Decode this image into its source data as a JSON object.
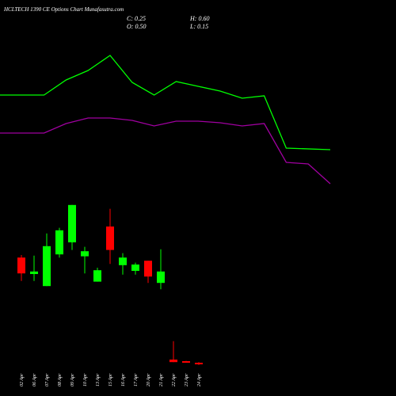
{
  "chart_data": [
    {
      "type": "candlestick",
      "title": "HCLTECH 1390 CE Options Chart Munafasutra.com",
      "ohlc_labels": [
        "C: 0.25",
        "H: 0.60",
        "O: 0.50",
        "L: 0.15"
      ],
      "categories": [
        "02 Apr",
        "06 Apr",
        "07 Apr",
        "08 Apr",
        "09 Apr",
        "10 Apr",
        "13 Apr",
        "15 Apr",
        "16 Apr",
        "17 Apr",
        "20 Apr",
        "21 Apr",
        "22 Apr",
        "23 Apr",
        "24 Apr"
      ],
      "open": [
        17.1,
        14.5,
        12.6,
        17.6,
        19.5,
        17.3,
        13.3,
        22,
        15.9,
        15,
        16.6,
        13.1,
        1.0,
        0.75,
        0.5
      ],
      "high": [
        17.5,
        17.4,
        20.9,
        21.8,
        25.4,
        18.8,
        15.5,
        24.8,
        17.8,
        16.3,
        16.6,
        18.4,
        3.9,
        0.8,
        0.6
      ],
      "low": [
        13.4,
        13.4,
        12.6,
        17.1,
        18.3,
        14.6,
        13.3,
        16.1,
        14.4,
        14.4,
        13.1,
        12.1,
        0.6,
        0.5,
        0.15
      ],
      "close": [
        14.6,
        14.9,
        18.9,
        21.4,
        25.4,
        18.1,
        15.1,
        18.3,
        17.1,
        16,
        14.1,
        14.9,
        0.6,
        0.5,
        0.25
      ],
      "up_color": "#00ff00",
      "down_color": "#ff0000",
      "ylim": [
        0,
        50
      ]
    },
    {
      "type": "line",
      "xlim": [
        0,
        15
      ],
      "ylim": [
        0,
        500
      ],
      "series": [
        {
          "color": "#00ff00",
          "x": [
            0,
            2,
            3,
            4,
            5,
            6,
            7,
            8,
            9,
            10,
            11,
            12,
            13,
            15
          ],
          "values": [
            380,
            380,
            399,
            411,
            430,
            396,
            380,
            397,
            391,
            385,
            376,
            379,
            313,
            311
          ]
        },
        {
          "color": "#a000a0",
          "x": [
            0,
            2,
            3,
            4,
            5,
            6,
            7,
            8,
            9,
            10,
            11,
            12,
            13,
            14,
            15
          ],
          "values": [
            332,
            332,
            344,
            351,
            351,
            348,
            341,
            347,
            347,
            345,
            341,
            344,
            295,
            293,
            268
          ]
        }
      ]
    }
  ]
}
